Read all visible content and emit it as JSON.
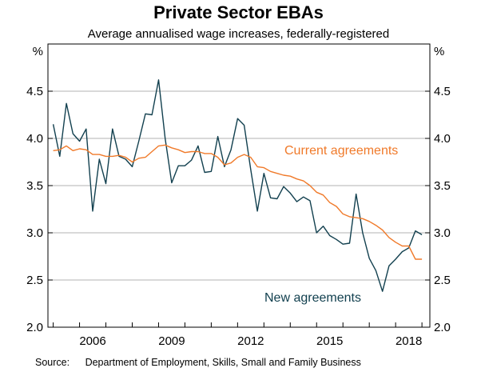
{
  "title": "Private Sector EBAs",
  "subtitle": "Average annualised wage increases, federally-registered",
  "source_label": "Source:",
  "source_text": "Department of Employment, Skills, Small and Family Business",
  "chart_data": {
    "type": "line",
    "title": "Private Sector EBAs",
    "subtitle": "Average annualised wage increases, federally-registered",
    "y_unit_left": "%",
    "y_unit_right": "%",
    "ylim": [
      2.0,
      5.0
    ],
    "yticks": [
      "2.0",
      "2.5",
      "3.0",
      "3.5",
      "4.0",
      "4.5"
    ],
    "xlim": [
      2004.8,
      2019.3
    ],
    "xticks": [
      "2006",
      "2009",
      "2012",
      "2015",
      "2018"
    ],
    "grid": "horizontal",
    "colors": {
      "new": "#12404f",
      "current": "#f07a2a"
    },
    "series": [
      {
        "name": "New agreements",
        "color": "#12404f",
        "x": [
          2005.0,
          2005.25,
          2005.5,
          2005.75,
          2006.0,
          2006.25,
          2006.5,
          2006.75,
          2007.0,
          2007.25,
          2007.5,
          2007.75,
          2008.0,
          2008.25,
          2008.5,
          2008.75,
          2009.0,
          2009.25,
          2009.5,
          2009.75,
          2010.0,
          2010.25,
          2010.5,
          2010.75,
          2011.0,
          2011.25,
          2011.5,
          2011.75,
          2012.0,
          2012.25,
          2012.5,
          2012.75,
          2013.0,
          2013.25,
          2013.5,
          2013.75,
          2014.0,
          2014.25,
          2014.5,
          2014.75,
          2015.0,
          2015.25,
          2015.5,
          2015.75,
          2016.0,
          2016.25,
          2016.5,
          2016.75,
          2017.0,
          2017.25,
          2017.5,
          2017.75,
          2018.0,
          2018.25,
          2018.5,
          2018.75,
          2019.0
        ],
        "values": [
          4.15,
          3.81,
          4.37,
          4.05,
          3.97,
          4.1,
          3.23,
          3.78,
          3.52,
          4.1,
          3.81,
          3.78,
          3.7,
          3.97,
          4.26,
          4.25,
          4.62,
          4.0,
          3.53,
          3.71,
          3.71,
          3.77,
          3.92,
          3.64,
          3.65,
          4.02,
          3.7,
          3.88,
          4.21,
          4.14,
          3.67,
          3.23,
          3.63,
          3.37,
          3.36,
          3.49,
          3.42,
          3.33,
          3.38,
          3.34,
          3.0,
          3.07,
          2.97,
          2.93,
          2.88,
          2.89,
          3.41,
          3.0,
          2.73,
          2.6,
          2.38,
          2.65,
          2.72,
          2.8,
          2.84,
          3.02,
          2.98
        ]
      },
      {
        "name": "Current agreements",
        "color": "#f07a2a",
        "x": [
          2005.0,
          2005.25,
          2005.5,
          2005.75,
          2006.0,
          2006.25,
          2006.5,
          2006.75,
          2007.0,
          2007.25,
          2007.5,
          2007.75,
          2008.0,
          2008.25,
          2008.5,
          2008.75,
          2009.0,
          2009.25,
          2009.5,
          2009.75,
          2010.0,
          2010.25,
          2010.5,
          2010.75,
          2011.0,
          2011.25,
          2011.5,
          2011.75,
          2012.0,
          2012.25,
          2012.5,
          2012.75,
          2013.0,
          2013.25,
          2013.5,
          2013.75,
          2014.0,
          2014.25,
          2014.5,
          2014.75,
          2015.0,
          2015.25,
          2015.5,
          2015.75,
          2016.0,
          2016.25,
          2016.5,
          2016.75,
          2017.0,
          2017.25,
          2017.5,
          2017.75,
          2018.0,
          2018.25,
          2018.5,
          2018.75,
          2019.0
        ],
        "values": [
          3.87,
          3.88,
          3.92,
          3.87,
          3.89,
          3.88,
          3.83,
          3.83,
          3.81,
          3.81,
          3.82,
          3.8,
          3.75,
          3.79,
          3.8,
          3.86,
          3.92,
          3.93,
          3.9,
          3.88,
          3.85,
          3.86,
          3.86,
          3.84,
          3.84,
          3.8,
          3.72,
          3.74,
          3.8,
          3.83,
          3.8,
          3.7,
          3.69,
          3.65,
          3.63,
          3.61,
          3.6,
          3.57,
          3.55,
          3.5,
          3.43,
          3.4,
          3.32,
          3.28,
          3.2,
          3.17,
          3.16,
          3.15,
          3.12,
          3.08,
          3.03,
          2.95,
          2.9,
          2.86,
          2.86,
          2.72,
          2.72
        ]
      }
    ],
    "annotations": [
      {
        "text": "Current agreements",
        "series": "Current agreements"
      },
      {
        "text": "New agreements",
        "series": "New agreements"
      }
    ]
  }
}
